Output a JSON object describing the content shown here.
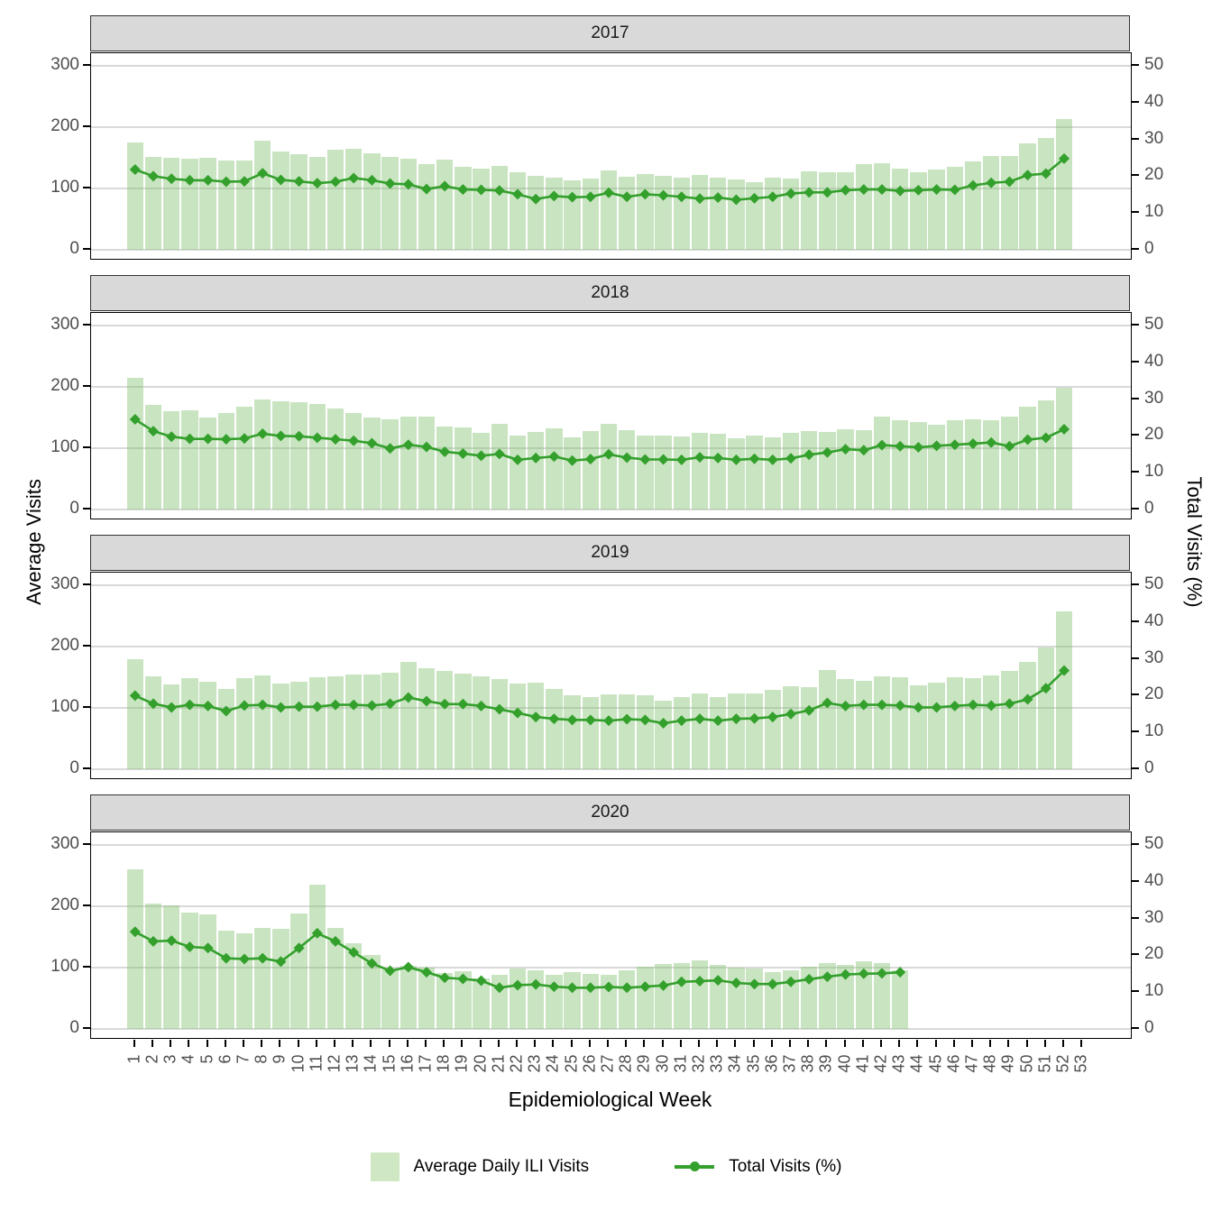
{
  "figure_title": "",
  "left_axis": {
    "title": "Average Visits",
    "ticks": [
      0,
      100,
      200,
      300
    ]
  },
  "right_axis": {
    "title": "Total Visits (%)",
    "ticks": [
      0,
      10,
      20,
      30,
      40,
      50
    ]
  },
  "x_axis": {
    "title": "Epidemiological Week",
    "ticks": [
      1,
      2,
      3,
      4,
      5,
      6,
      7,
      8,
      9,
      10,
      11,
      12,
      13,
      14,
      15,
      16,
      17,
      18,
      19,
      20,
      21,
      22,
      23,
      24,
      25,
      26,
      27,
      28,
      29,
      30,
      31,
      32,
      33,
      34,
      35,
      36,
      37,
      38,
      39,
      40,
      41,
      42,
      43,
      44,
      45,
      46,
      47,
      48,
      49,
      50,
      51,
      52,
      53
    ]
  },
  "legend": {
    "bar_label": "Average Daily ILI Visits",
    "line_label": "Total Visits (%)"
  },
  "colors": {
    "bar_fill": "rgba(127,191,107,0.42)",
    "bar_fill_flat": "#cfe7c3",
    "line": "#33a02c",
    "strip_bg": "#d9d9d9",
    "gridline": "#d9d9d9",
    "tick_text": "#4d4d4d",
    "panel_border": "#000000"
  },
  "chart_data": {
    "type": "bar+line",
    "x_label": "Epidemiological Week",
    "bar_series_name": "Average Daily ILI Visits",
    "bar_axis": {
      "label": "Average Visits",
      "range": [
        0,
        320
      ]
    },
    "line_series_name": "Total Visits (%)",
    "line_axis": {
      "label": "Total Visits (%)",
      "range": [
        0,
        53
      ]
    },
    "facets": [
      {
        "label": "2017",
        "weeks": [
          1,
          2,
          3,
          4,
          5,
          6,
          7,
          8,
          9,
          10,
          11,
          12,
          13,
          14,
          15,
          16,
          17,
          18,
          19,
          20,
          21,
          22,
          23,
          24,
          25,
          26,
          27,
          28,
          29,
          30,
          31,
          32,
          33,
          34,
          35,
          36,
          37,
          38,
          39,
          40,
          41,
          42,
          43,
          44,
          45,
          46,
          47,
          48,
          49,
          50,
          51,
          52
        ],
        "avg_daily_ili_visits": [
          175,
          151,
          150,
          149,
          150,
          146,
          145,
          178,
          160,
          156,
          151,
          163,
          165,
          157,
          151,
          148,
          140,
          147,
          136,
          133,
          137,
          126,
          120,
          118,
          113,
          116,
          130,
          119,
          124,
          121,
          118,
          122,
          117,
          115,
          110,
          117,
          116,
          128,
          127,
          126,
          139,
          141,
          133,
          126,
          131,
          135,
          144,
          153,
          153,
          174,
          182,
          213
        ],
        "total_visits_pct": [
          21.8,
          20.0,
          19.3,
          18.9,
          18.9,
          18.5,
          18.6,
          20.8,
          19.0,
          18.6,
          18.1,
          18.5,
          19.5,
          18.9,
          18.0,
          17.8,
          16.5,
          17.3,
          16.4,
          16.3,
          16.1,
          15.1,
          13.8,
          14.6,
          14.3,
          14.4,
          15.5,
          14.4,
          15.1,
          14.8,
          14.4,
          13.9,
          14.2,
          13.6,
          14.0,
          14.4,
          15.3,
          15.6,
          15.6,
          16.2,
          16.4,
          16.4,
          16.0,
          16.2,
          16.4,
          16.3,
          17.5,
          18.2,
          18.5,
          20.3,
          20.7,
          24.8
        ]
      },
      {
        "label": "2018",
        "weeks": [
          1,
          2,
          3,
          4,
          5,
          6,
          7,
          8,
          9,
          10,
          11,
          12,
          13,
          14,
          15,
          16,
          17,
          18,
          19,
          20,
          21,
          22,
          23,
          24,
          25,
          26,
          27,
          28,
          29,
          30,
          31,
          32,
          33,
          34,
          35,
          36,
          37,
          38,
          39,
          40,
          41,
          42,
          43,
          44,
          45,
          46,
          47,
          48,
          49,
          50,
          51,
          52
        ],
        "avg_daily_ili_visits": [
          215,
          170,
          161,
          162,
          150,
          158,
          168,
          180,
          176,
          175,
          172,
          165,
          158,
          150,
          147,
          152,
          151,
          135,
          134,
          125,
          140,
          121,
          127,
          133,
          118,
          128,
          140,
          130,
          120,
          120,
          119,
          125,
          123,
          116,
          120,
          117,
          125,
          128,
          127,
          131,
          130,
          151,
          145,
          142,
          138,
          145,
          147,
          145,
          152,
          168,
          178,
          198
        ],
        "total_visits_pct": [
          24.5,
          21.3,
          19.8,
          19.2,
          19.2,
          19.1,
          19.3,
          20.6,
          20.0,
          19.9,
          19.5,
          19.1,
          18.7,
          18.0,
          16.6,
          17.6,
          17.0,
          15.7,
          15.2,
          14.6,
          15.1,
          13.5,
          14.0,
          14.4,
          13.3,
          13.7,
          15.0,
          14.1,
          13.6,
          13.6,
          13.5,
          14.2,
          14.0,
          13.5,
          13.8,
          13.5,
          13.9,
          14.9,
          15.5,
          16.4,
          16.1,
          17.5,
          17.2,
          16.9,
          17.3,
          17.6,
          17.9,
          18.2,
          17.2,
          19.0,
          19.5,
          21.8
        ]
      },
      {
        "label": "2019",
        "weeks": [
          1,
          2,
          3,
          4,
          5,
          6,
          7,
          8,
          9,
          10,
          11,
          12,
          13,
          14,
          15,
          16,
          17,
          18,
          19,
          20,
          21,
          22,
          23,
          24,
          25,
          26,
          27,
          28,
          29,
          30,
          31,
          32,
          33,
          34,
          35,
          36,
          37,
          38,
          39,
          40,
          41,
          42,
          43,
          44,
          45,
          46,
          47,
          48,
          49,
          50,
          51,
          52
        ],
        "avg_daily_ili_visits": [
          180,
          152,
          138,
          148,
          142,
          131,
          148,
          153,
          140,
          143,
          150,
          152,
          155,
          155,
          157,
          175,
          164,
          160,
          156,
          151,
          147,
          139,
          141,
          131,
          120,
          118,
          122,
          122,
          120,
          112,
          118,
          123,
          117,
          124,
          124,
          129,
          136,
          134,
          162,
          147,
          144,
          152,
          150,
          137,
          141,
          150,
          148,
          153,
          160,
          175,
          198,
          258
        ],
        "total_visits_pct": [
          20.0,
          17.8,
          16.8,
          17.5,
          17.2,
          15.8,
          17.3,
          17.5,
          16.8,
          17.0,
          17.0,
          17.5,
          17.5,
          17.3,
          17.8,
          19.5,
          18.5,
          17.7,
          17.7,
          17.2,
          16.3,
          15.3,
          14.2,
          13.7,
          13.4,
          13.4,
          13.2,
          13.6,
          13.4,
          12.5,
          13.2,
          13.7,
          13.2,
          13.7,
          13.8,
          14.2,
          15.0,
          16.0,
          18.0,
          17.2,
          17.5,
          17.5,
          17.3,
          16.8,
          16.8,
          17.2,
          17.5,
          17.3,
          17.8,
          19.0,
          22.0,
          26.8
        ]
      },
      {
        "label": "2020",
        "weeks": [
          1,
          2,
          3,
          4,
          5,
          6,
          7,
          8,
          9,
          10,
          11,
          12,
          13,
          14,
          15,
          16,
          17,
          18,
          19,
          20,
          21,
          22,
          23,
          24,
          25,
          26,
          27,
          28,
          29,
          30,
          31,
          32,
          33,
          34,
          35,
          36,
          37,
          38,
          39,
          40,
          41,
          42,
          43
        ],
        "avg_daily_ili_visits": [
          260,
          204,
          202,
          190,
          187,
          161,
          156,
          165,
          163,
          188,
          235,
          165,
          140,
          120,
          97,
          103,
          100,
          91,
          94,
          83,
          88,
          99,
          95,
          88,
          92,
          90,
          88,
          96,
          101,
          106,
          108,
          112,
          105,
          100,
          98,
          93,
          96,
          102,
          107,
          105,
          110,
          107,
          95
        ],
        "total_visits_pct": [
          26.4,
          23.8,
          24.0,
          22.3,
          22.0,
          19.2,
          19.0,
          19.2,
          18.3,
          22.0,
          26.0,
          23.8,
          20.8,
          17.8,
          15.8,
          16.8,
          15.4,
          13.9,
          13.6,
          13.1,
          11.2,
          11.9,
          12.1,
          11.5,
          11.2,
          11.2,
          11.4,
          11.2,
          11.5,
          11.8,
          12.8,
          13.0,
          13.2,
          12.5,
          12.2,
          12.2,
          12.8,
          13.5,
          14.2,
          14.8,
          15.0,
          15.1,
          15.4
        ]
      }
    ]
  }
}
